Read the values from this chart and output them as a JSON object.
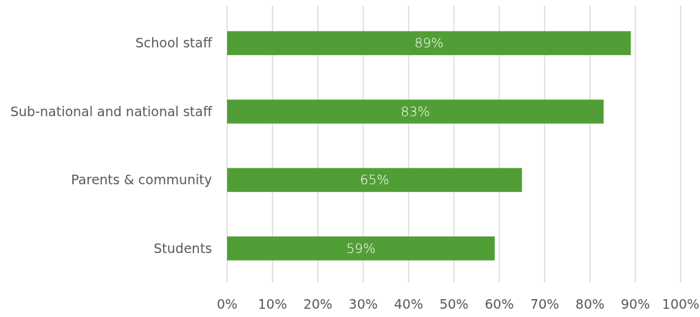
{
  "chart_data": {
    "type": "bar",
    "orientation": "horizontal",
    "categories": [
      "School staff",
      "Sub-national and national staff",
      "Parents & community",
      "Students"
    ],
    "values": [
      89,
      83,
      65,
      59
    ],
    "value_labels": [
      "89%",
      "83%",
      "65%",
      "59%"
    ],
    "color": "#529e36",
    "xlim": [
      0,
      100
    ],
    "xticks": [
      {
        "value": 0,
        "label": "0%"
      },
      {
        "value": 10,
        "label": "10%"
      },
      {
        "value": 20,
        "label": "20%"
      },
      {
        "value": 30,
        "label": "30%"
      },
      {
        "value": 40,
        "label": "40%"
      },
      {
        "value": 50,
        "label": "50%"
      },
      {
        "value": 60,
        "label": "60%"
      },
      {
        "value": 70,
        "label": "70%"
      },
      {
        "value": 80,
        "label": "80%"
      },
      {
        "value": 90,
        "label": "90%"
      },
      {
        "value": 100,
        "label": "100%"
      }
    ],
    "grid": "x"
  }
}
